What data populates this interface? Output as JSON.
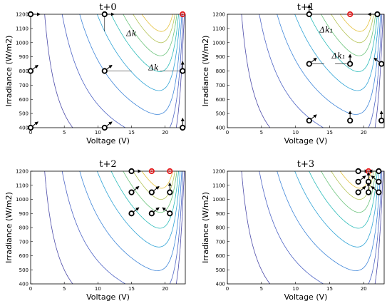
{
  "figure": {
    "xlabel": "Voltage (V)",
    "ylabel": "Irradiance (W/m",
    "ylabel_sup": "2",
    "ylabel_close": ")",
    "x_ticks": [
      0,
      5,
      10,
      15,
      20
    ],
    "y_ticks": [
      400,
      500,
      600,
      700,
      800,
      900,
      1000,
      1100,
      1200
    ],
    "xlim": [
      0,
      23
    ],
    "ylim": [
      400,
      1200
    ],
    "contour_colors": [
      "#4b4aa8",
      "#4d63c4",
      "#3f86d9",
      "#2fa3d6",
      "#2cbcba",
      "#6cc47c",
      "#b5c458",
      "#e4c13c"
    ],
    "optimum_color": "#e41a1c",
    "panels": [
      {
        "title": "t+0",
        "annotations": [
          {
            "text": "Δk",
            "x": 14.2,
            "y": 1047
          },
          {
            "text": "Δk",
            "x": 17.5,
            "y": 805
          }
        ],
        "points": [
          {
            "x": 0,
            "y": 1200,
            "dir": "right"
          },
          {
            "x": 11,
            "y": 1200,
            "dir": "right"
          },
          {
            "x": 22.6,
            "y": 1200,
            "dir": "opt"
          },
          {
            "x": 0,
            "y": 800,
            "dir": "upright"
          },
          {
            "x": 11,
            "y": 800,
            "dir": "upright"
          },
          {
            "x": 22.6,
            "y": 800,
            "dir": "up"
          },
          {
            "x": 0,
            "y": 400,
            "dir": "upright"
          },
          {
            "x": 11,
            "y": 400,
            "dir": "upright"
          },
          {
            "x": 22.6,
            "y": 400,
            "dir": "up"
          }
        ]
      },
      {
        "title": "t+1",
        "annotations": [
          {
            "text": "Δk₁",
            "x": 13.5,
            "y": 1072
          },
          {
            "text": "Δk₁",
            "x": 15.3,
            "y": 887
          }
        ],
        "points": [
          {
            "x": 12,
            "y": 1200,
            "dir": "up"
          },
          {
            "x": 18,
            "y": 1200,
            "dir": "opt"
          },
          {
            "x": 22,
            "y": 1200,
            "dir": "left"
          },
          {
            "x": 12,
            "y": 850,
            "dir": "upright"
          },
          {
            "x": 18,
            "y": 850,
            "dir": "up"
          },
          {
            "x": 22.6,
            "y": 850,
            "dir": "upleft"
          },
          {
            "x": 12,
            "y": 450,
            "dir": "upright"
          },
          {
            "x": 18,
            "y": 450,
            "dir": "up"
          },
          {
            "x": 22.6,
            "y": 450,
            "dir": "up"
          }
        ]
      },
      {
        "title": "t+2",
        "annotations": [],
        "points": [
          {
            "x": 15,
            "y": 1200,
            "dir": "right"
          },
          {
            "x": 18,
            "y": 1200,
            "dir": "opt"
          },
          {
            "x": 20.7,
            "y": 1200,
            "dir": "opt"
          },
          {
            "x": 15,
            "y": 1050,
            "dir": "upright"
          },
          {
            "x": 18,
            "y": 1050,
            "dir": "upright"
          },
          {
            "x": 20.7,
            "y": 1050,
            "dir": "up"
          },
          {
            "x": 15,
            "y": 900,
            "dir": "upright"
          },
          {
            "x": 18,
            "y": 900,
            "dir": "upright"
          },
          {
            "x": 20.7,
            "y": 900,
            "dir": "upleft"
          }
        ]
      },
      {
        "title": "t+3",
        "annotations": [],
        "points": [
          {
            "x": 19.2,
            "y": 1200,
            "dir": "right"
          },
          {
            "x": 20.7,
            "y": 1200,
            "dir": "opt"
          },
          {
            "x": 22.2,
            "y": 1200,
            "dir": "left"
          },
          {
            "x": 19.2,
            "y": 1125,
            "dir": "upright"
          },
          {
            "x": 20.7,
            "y": 1125,
            "dir": "up"
          },
          {
            "x": 22.2,
            "y": 1125,
            "dir": "upleft"
          },
          {
            "x": 19.2,
            "y": 1050,
            "dir": "upright"
          },
          {
            "x": 20.7,
            "y": 1050,
            "dir": "up"
          },
          {
            "x": 22.2,
            "y": 1050,
            "dir": "upleft"
          }
        ]
      }
    ]
  }
}
